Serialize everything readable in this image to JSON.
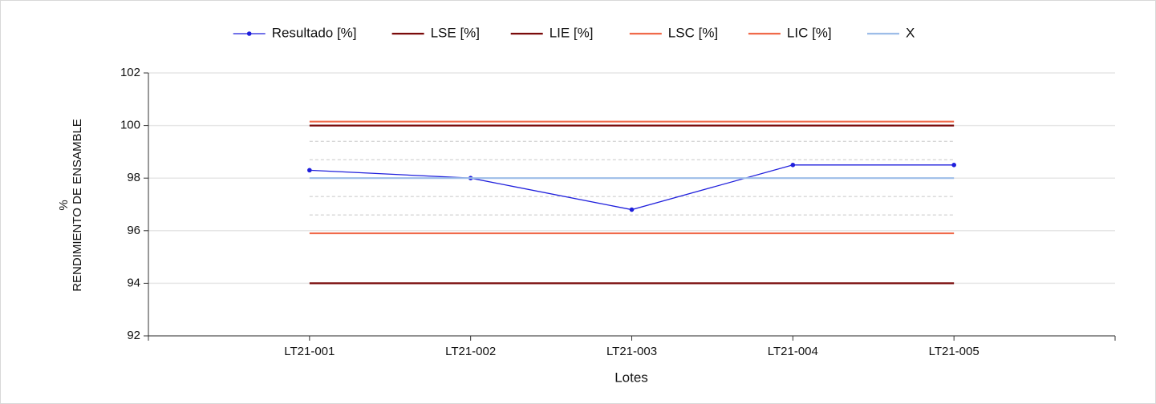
{
  "chart_data": {
    "type": "line",
    "xlabel": "Lotes",
    "ylabel": [
      "%",
      "RENDIMIENTO DE ENSAMBLE"
    ],
    "categories": [
      "LT21-001",
      "LT21-002",
      "LT21-003",
      "LT21-004",
      "LT21-005"
    ],
    "series": [
      {
        "name": "Resultado [%]",
        "color": "#1f1fdc",
        "markers": true,
        "values": [
          98.3,
          98.0,
          96.8,
          98.5,
          98.5
        ]
      },
      {
        "name": "LSE [%]",
        "color": "#7a0a0a",
        "markers": false,
        "values": [
          100,
          100,
          100,
          100,
          100
        ]
      },
      {
        "name": "LIE [%]",
        "color": "#7a0a0a",
        "markers": false,
        "values": [
          94,
          94,
          94,
          94,
          94
        ]
      },
      {
        "name": "LSC [%]",
        "color": "#f06a4a",
        "markers": false,
        "values": [
          100.15,
          100.15,
          100.15,
          100.15,
          100.15
        ]
      },
      {
        "name": "LIC [%]",
        "color": "#f06a4a",
        "markers": false,
        "values": [
          95.9,
          95.9,
          95.9,
          95.9,
          95.9
        ]
      },
      {
        "name": "X",
        "color": "#9dbde8",
        "markers": false,
        "values": [
          98.0,
          98.0,
          98.0,
          98.0,
          98.0
        ]
      }
    ],
    "zone_lines": [
      99.4,
      98.7,
      97.3,
      96.6
    ],
    "ylim": [
      92,
      102
    ],
    "yticks": [
      92,
      94,
      96,
      98,
      100,
      102
    ],
    "grid": true
  }
}
